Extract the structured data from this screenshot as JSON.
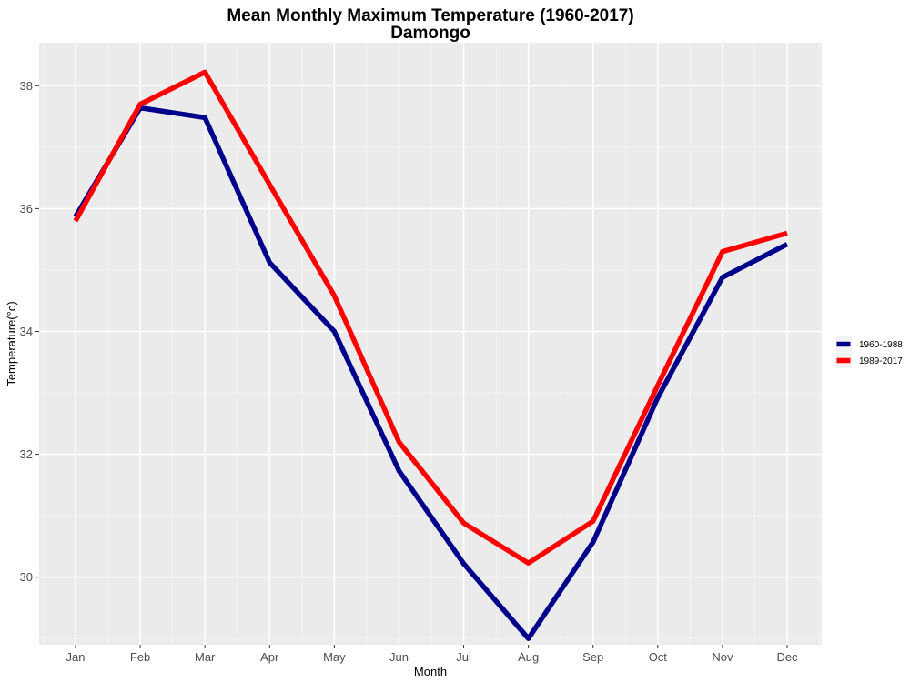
{
  "chart_data": {
    "type": "line",
    "title": "Mean Monthly Maximum Temperature (1960-2017)",
    "subtitle": "Damongo",
    "xlabel": "Month",
    "ylabel": "Temperature(°c)",
    "categories": [
      "Jan",
      "Feb",
      "Mar",
      "Apr",
      "May",
      "Jun",
      "Jul",
      "Aug",
      "Sep",
      "Oct",
      "Nov",
      "Dec"
    ],
    "ylim": [
      28.9,
      38.7
    ],
    "yticks": [
      30,
      32,
      34,
      36,
      38
    ],
    "grid": true,
    "legend_position": "right",
    "series": [
      {
        "name": "1960-1988",
        "color": "#00008b",
        "values": [
          35.87,
          37.64,
          37.48,
          35.12,
          34.0,
          31.73,
          30.22,
          29.0,
          30.57,
          32.92,
          34.88,
          35.42
        ]
      },
      {
        "name": "1989-2017",
        "color": "#ff0000",
        "values": [
          35.8,
          37.7,
          38.22,
          36.39,
          34.58,
          32.2,
          30.88,
          30.23,
          30.91,
          33.12,
          35.3,
          35.6
        ]
      }
    ]
  }
}
